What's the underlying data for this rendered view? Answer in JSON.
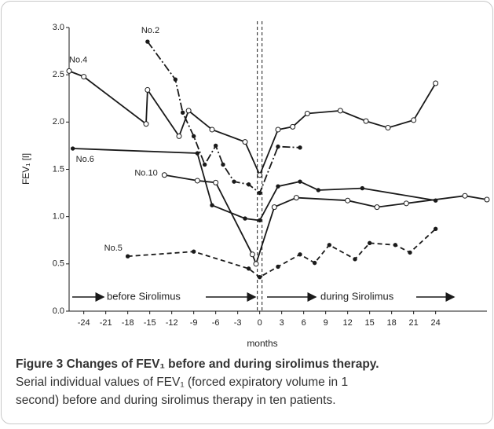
{
  "chart_data": {
    "type": "line",
    "xlabel": "months",
    "ylabel": "FEV₁ [l]",
    "xlim": [
      -26,
      31
    ],
    "ylim": [
      0,
      3
    ],
    "xticks": [
      -24,
      -21,
      -18,
      -15,
      -12,
      -9,
      -6,
      -3,
      0,
      3,
      6,
      9,
      12,
      15,
      18,
      21,
      24
    ],
    "yticks": [
      {
        "value": 0,
        "label": "0.0"
      },
      0.5,
      {
        "value": 1,
        "label": "1.0"
      },
      1.5,
      {
        "value": 2,
        "label": "2.0"
      },
      2.5,
      {
        "value": 3,
        "label": "3.0"
      }
    ],
    "annotations": [
      "before Sirolimus",
      "during Sirolimus"
    ],
    "series": [
      {
        "name": "No.4",
        "color": "#1a1a1a",
        "style": "solid",
        "marker": "open",
        "x": [
          -26,
          -24,
          -15.5,
          -15.3,
          -11,
          -9.7,
          -6.5,
          -2,
          0,
          2.5,
          4.5,
          6.5,
          11,
          14.5,
          17.5,
          21,
          24
        ],
        "values": [
          2.54,
          2.48,
          1.98,
          2.34,
          1.85,
          2.12,
          1.92,
          1.79,
          1.44,
          1.92,
          1.95,
          2.09,
          2.12,
          2.01,
          1.94,
          2.02,
          2.41
        ]
      },
      {
        "name": "No.2",
        "color": "#1a1a1a",
        "style": "dashdot",
        "marker": "filled",
        "x": [
          -15.3,
          -11.5,
          -10.5,
          -9,
          -7.5,
          -6,
          -5,
          -3.5,
          -1.5,
          0,
          2.5,
          5.5
        ],
        "values": [
          2.85,
          2.45,
          2.1,
          1.85,
          1.55,
          1.75,
          1.55,
          1.37,
          1.34,
          1.25,
          1.74,
          1.73
        ]
      },
      {
        "name": "No.6",
        "color": "#1a1a1a",
        "style": "solid",
        "marker": "filled",
        "x": [
          -25.5,
          -8.5,
          -6.5,
          -2,
          0,
          2.5,
          5.5,
          8,
          14,
          24
        ],
        "values": [
          1.72,
          1.67,
          1.12,
          0.98,
          0.96,
          1.32,
          1.37,
          1.28,
          1.3,
          1.17
        ]
      },
      {
        "name": "No.10",
        "color": "#1a1a1a",
        "style": "solid",
        "marker": "open",
        "x": [
          -13,
          -8.5,
          -6,
          -1,
          -0.5,
          2,
          5,
          12,
          16,
          20,
          28,
          31
        ],
        "values": [
          1.44,
          1.38,
          1.36,
          0.6,
          0.5,
          1.1,
          1.2,
          1.17,
          1.1,
          1.14,
          1.22,
          1.18
        ]
      },
      {
        "name": "No.5",
        "color": "#1a1a1a",
        "style": "dashed",
        "marker": "filled",
        "x": [
          -18,
          -9,
          -1.5,
          0,
          2.5,
          5.5,
          7.5,
          9.5,
          13,
          15,
          18.5,
          20.5,
          24
        ],
        "values": [
          0.58,
          0.63,
          0.45,
          0.36,
          0.47,
          0.6,
          0.51,
          0.7,
          0.55,
          0.72,
          0.7,
          0.62,
          0.87
        ]
      }
    ]
  },
  "caption": {
    "title": "Figure 3 Changes of FEV₁ before and during sirolimus therapy.",
    "lines": [
      "Serial individual values of FEV₁ (forced expiratory volume in 1",
      "second) before and during sirolimus therapy in ten patients."
    ]
  }
}
